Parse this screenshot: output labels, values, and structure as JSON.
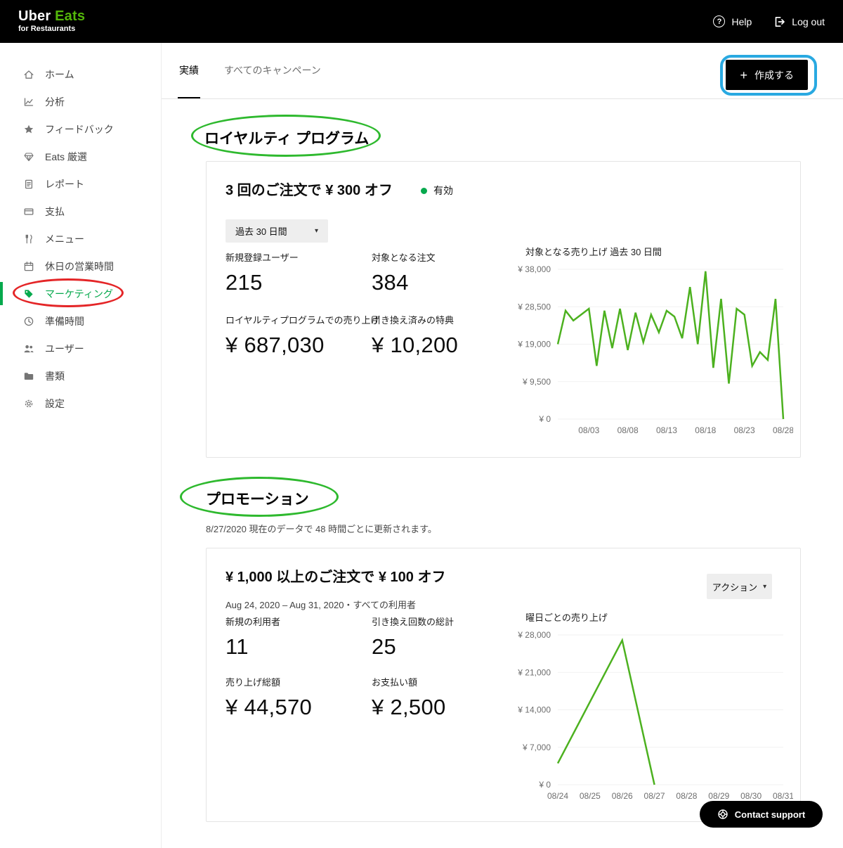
{
  "header": {
    "logo_uber": "Uber",
    "logo_eats": "Eats",
    "logo_sub": "for Restaurants",
    "help_label": "Help",
    "logout_label": "Log out"
  },
  "icons": {
    "plus": "+",
    "caret_down": "▾",
    "question": "?"
  },
  "colors": {
    "logo_green": "#53b70a",
    "accent_green": "#06a94d",
    "chart_line_green": "#4cb11f"
  },
  "sidebar": {
    "items": [
      {
        "label": "ホーム",
        "icon": "home"
      },
      {
        "label": "分析",
        "icon": "analytics"
      },
      {
        "label": "フィードバック",
        "icon": "feedback-star"
      },
      {
        "label": "Eats 厳選",
        "icon": "eats-select"
      },
      {
        "label": "レポート",
        "icon": "report"
      },
      {
        "label": "支払",
        "icon": "payments"
      },
      {
        "label": "メニュー",
        "icon": "menu"
      },
      {
        "label": "休日の営業時間",
        "icon": "holiday-hours"
      },
      {
        "label": "マーケティング",
        "icon": "marketing-tag",
        "active": true
      },
      {
        "label": "準備時間",
        "icon": "prep-time"
      },
      {
        "label": "ユーザー",
        "icon": "users"
      },
      {
        "label": "書類",
        "icon": "documents"
      },
      {
        "label": "設定",
        "icon": "settings"
      }
    ]
  },
  "main": {
    "tabs": [
      {
        "label": "実績",
        "active": true
      },
      {
        "label": "すべてのキャンペーン",
        "active": false
      }
    ],
    "create_button_label": "作成する",
    "loyalty": {
      "section_title": "ロイヤルティ プログラム",
      "card_title": "3 回のご注文で ¥ 300 オフ",
      "status": "有効",
      "range_selector": "過去 30 日間",
      "stats": [
        {
          "label": "新規登録ユーザー",
          "value": "215"
        },
        {
          "label": "対象となる注文",
          "value": "384"
        },
        {
          "label": "ロイヤルティプログラムでの売り上げ",
          "value": "¥ 687,030"
        },
        {
          "label": "引き換え済みの特典",
          "value": "¥ 10,200"
        }
      ]
    },
    "promotion": {
      "section_title": "プロモーション",
      "update_note": "8/27/2020 現在のデータで 48 時間ごとに更新されます。",
      "card_title": "¥ 1,000 以上のご注文で ¥ 100 オフ",
      "action_button_label": "アクション",
      "date_range": "Aug 24, 2020 – Aug 31, 2020・すべての利用者",
      "stats": [
        {
          "label": "新規の利用者",
          "value": "11"
        },
        {
          "label": "引き換え回数の総計",
          "value": "25"
        },
        {
          "label": "売り上げ総額",
          "value": "¥ 44,570"
        },
        {
          "label": "お支払い額",
          "value": "¥ 2,500"
        }
      ]
    }
  },
  "contact_support_label": "Contact support",
  "annotations": [
    {
      "name": "marketing-annotation",
      "shape": "ellipse",
      "color": "#e42527"
    },
    {
      "name": "loyalty-annotation",
      "shape": "ellipse",
      "color": "#2eb92e"
    },
    {
      "name": "promotion-annotation",
      "shape": "ellipse",
      "color": "#2eb92e"
    },
    {
      "name": "create-annotation",
      "shape": "rounded-rect",
      "color": "#29a9e1"
    }
  ],
  "chart_data": [
    {
      "type": "line",
      "title": "対象となる売り上げ 過去 30 日間",
      "x_count": 30,
      "x_tick_labels": [
        "08/03",
        "08/08",
        "08/13",
        "08/18",
        "08/23",
        "08/28"
      ],
      "x_tick_indices": [
        4,
        9,
        14,
        19,
        24,
        29
      ],
      "values": [
        19000,
        27500,
        25000,
        26500,
        28000,
        13500,
        27500,
        18000,
        28000,
        17500,
        27000,
        19500,
        26500,
        22000,
        27500,
        26000,
        20500,
        33500,
        19000,
        37500,
        13000,
        30500,
        9000,
        28000,
        26500,
        13500,
        17000,
        15000,
        30500,
        0
      ],
      "y_ticks": [
        0,
        9500,
        19000,
        28500,
        38000
      ],
      "y_tick_labels": [
        "¥ 0",
        "¥ 9,500",
        "¥ 19,000",
        "¥ 28,500",
        "¥ 38,000"
      ],
      "ylim": [
        0,
        38000
      ],
      "grid": true,
      "line_color": "#4cb11f"
    },
    {
      "type": "line",
      "title": "曜日ごとの売り上げ",
      "x_count": 8,
      "x_tick_labels": [
        "08/24",
        "08/25",
        "08/26",
        "08/27",
        "08/28",
        "08/29",
        "08/30",
        "08/31"
      ],
      "x_tick_indices": [
        0,
        1,
        2,
        3,
        4,
        5,
        6,
        7
      ],
      "values": [
        4000,
        15500,
        27000,
        0
      ],
      "y_ticks": [
        0,
        7000,
        14000,
        21000,
        28000
      ],
      "y_tick_labels": [
        "¥ 0",
        "¥ 7,000",
        "¥ 14,000",
        "¥ 21,000",
        "¥ 28,000"
      ],
      "ylim": [
        0,
        28000
      ],
      "grid": true,
      "line_color": "#4cb11f"
    }
  ]
}
